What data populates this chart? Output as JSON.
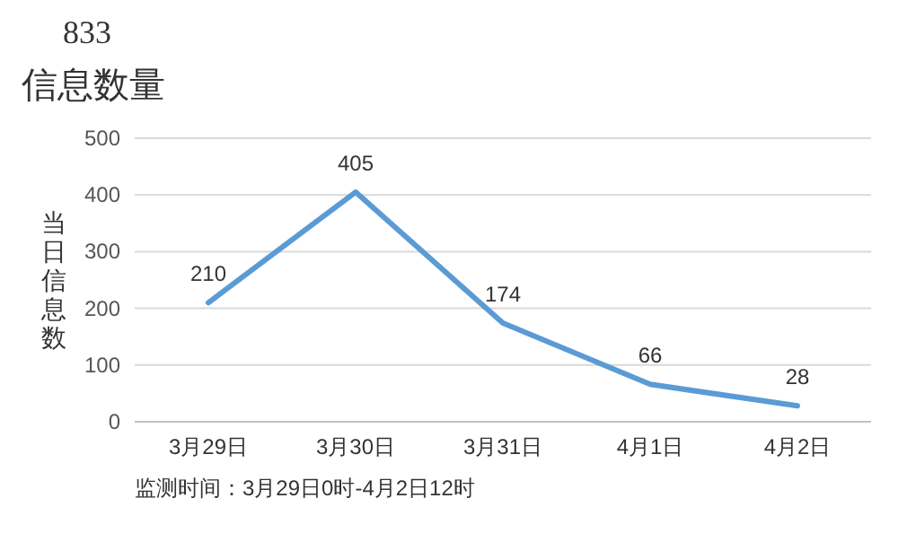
{
  "chart_data": {
    "type": "line",
    "title": "833",
    "subtitle": "信息数量",
    "ylabel": "当日信息数",
    "categories": [
      "3月29日",
      "3月30日",
      "3月31日",
      "4月1日",
      "4月2日"
    ],
    "series": [
      {
        "color": "#5b9bd5",
        "values": [
          210,
          405,
          174,
          66,
          28
        ]
      }
    ],
    "ylim": [
      0,
      500
    ],
    "yticks": [
      0,
      100,
      200,
      300,
      400,
      500
    ],
    "grid": "y",
    "data_labels": true,
    "marker": "none",
    "line_style": "solid",
    "annotations": [
      "监测时间：3月29日0时-4月2日12时"
    ]
  }
}
